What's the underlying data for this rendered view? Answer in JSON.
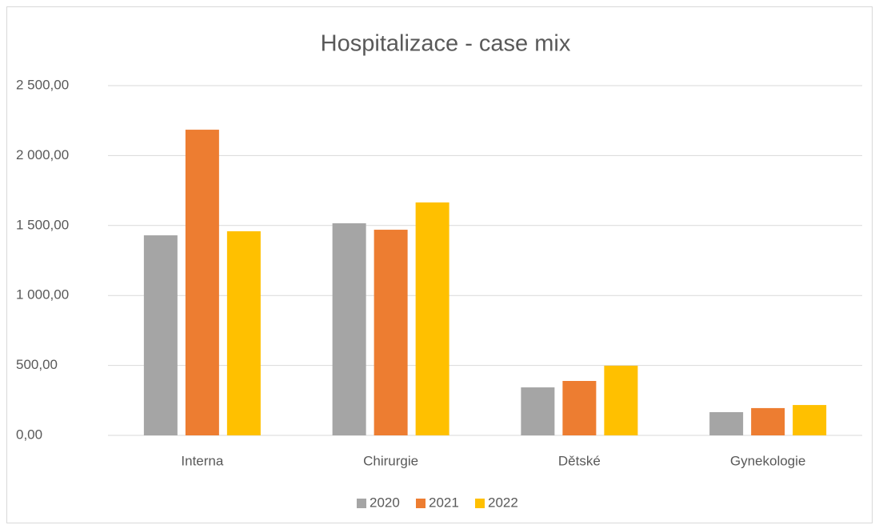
{
  "chart_data": {
    "type": "bar",
    "title": "Hospitalizace - case mix",
    "categories": [
      "Interna",
      "Chirurgie",
      "Dětské",
      "Gynekologie"
    ],
    "series": [
      {
        "name": "2020",
        "color": "#a5a5a5",
        "values": [
          1430,
          1516,
          343,
          166
        ]
      },
      {
        "name": "2021",
        "color": "#ed7d31",
        "values": [
          2185,
          1470,
          389,
          195
        ]
      },
      {
        "name": "2022",
        "color": "#ffc000",
        "values": [
          1459,
          1665,
          498,
          217
        ]
      }
    ],
    "ylim": [
      0,
      2500
    ],
    "yticks": [
      {
        "value": 0,
        "label": "0,00"
      },
      {
        "value": 500,
        "label": "500,00"
      },
      {
        "value": 1000,
        "label": "1 000,00"
      },
      {
        "value": 1500,
        "label": "1 500,00"
      },
      {
        "value": 2000,
        "label": "2 000,00"
      },
      {
        "value": 2500,
        "label": "2 500,00"
      }
    ],
    "grid": true,
    "legend": "bottom"
  }
}
